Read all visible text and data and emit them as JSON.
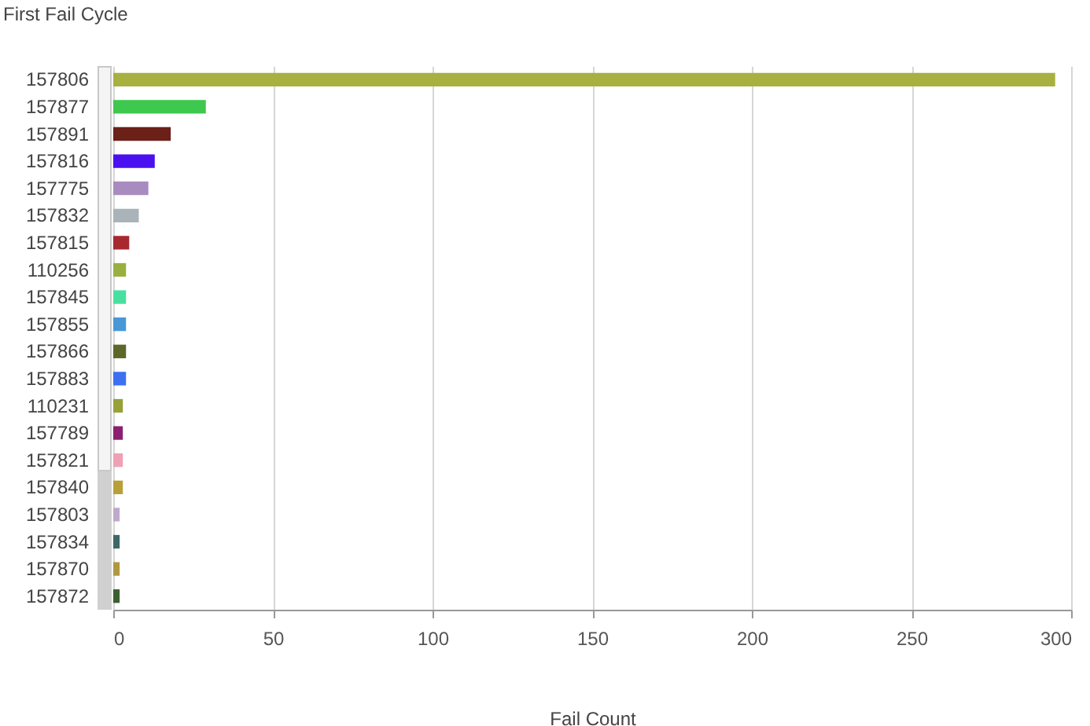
{
  "chart_data": {
    "type": "bar",
    "orientation": "horizontal",
    "title": "First Fail Cycle",
    "xlabel": "Fail Count",
    "categories": [
      "157806",
      "157877",
      "157891",
      "157816",
      "157775",
      "157832",
      "157815",
      "110256",
      "157845",
      "157855",
      "157866",
      "157883",
      "110231",
      "157789",
      "157821",
      "157840",
      "157803",
      "157834",
      "157870",
      "157872"
    ],
    "values": [
      295,
      29,
      18,
      13,
      11,
      8,
      5,
      4,
      4,
      4,
      4,
      4,
      3,
      3,
      3,
      3,
      2,
      2,
      2,
      2
    ],
    "colors": [
      "#a8b040",
      "#3ec84e",
      "#6b2018",
      "#4a10f0",
      "#a88cc0",
      "#aab4b8",
      "#a82830",
      "#98b040",
      "#48e0a0",
      "#4898d8",
      "#5c6828",
      "#3c70f0",
      "#98a038",
      "#8c2070",
      "#f0a0b4",
      "#b8a038",
      "#c0a8cc",
      "#3c6868",
      "#b09840",
      "#3c6030"
    ],
    "xlim": [
      0,
      300
    ],
    "xticks": [
      0,
      50,
      100,
      150,
      200,
      250,
      300
    ],
    "grid": "x",
    "legend": false
  }
}
